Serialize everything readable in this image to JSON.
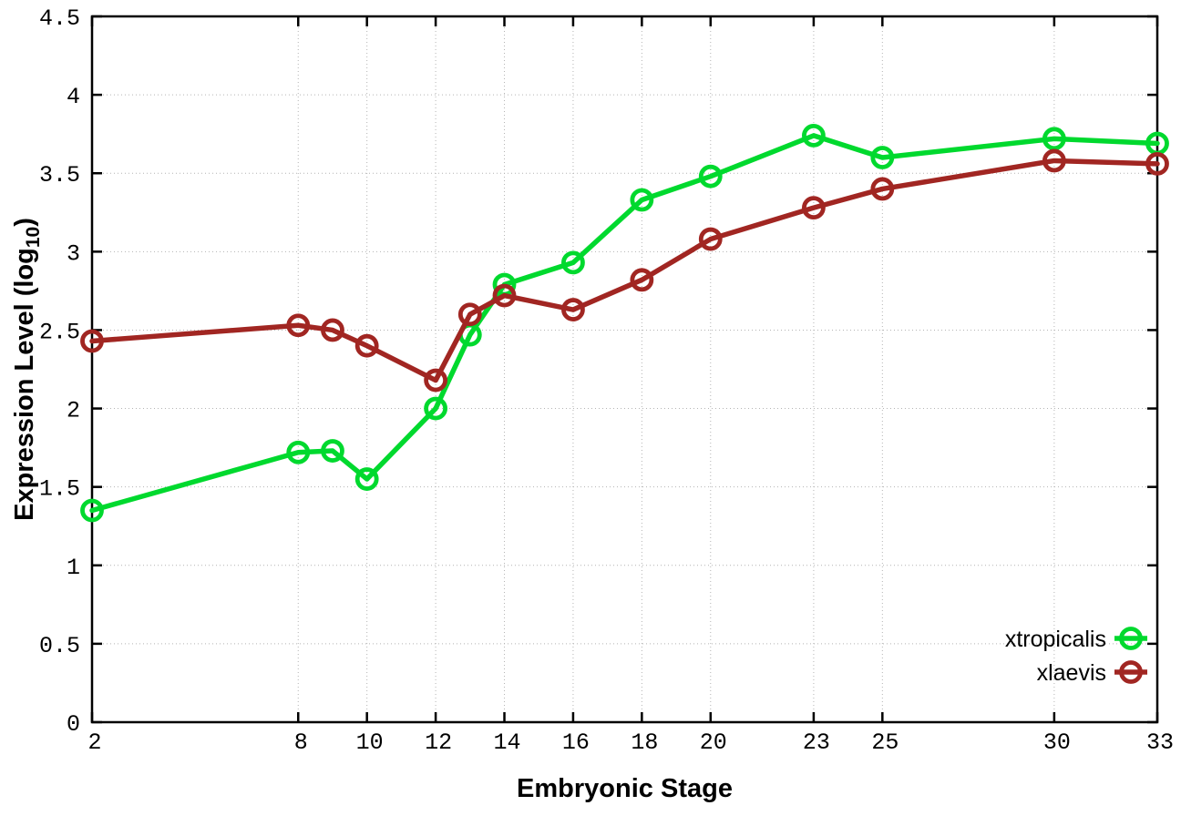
{
  "chart_data": {
    "type": "line",
    "title": "",
    "xlabel": "Embryonic Stage",
    "ylabel": {
      "main": "Expression Level (log",
      "sub": "10",
      "end": ")"
    },
    "xlim": [
      2,
      33
    ],
    "ylim": [
      0,
      4.5
    ],
    "grid": true,
    "legend_position": "inside-bottom-right",
    "x_ticks": [
      2,
      8,
      10,
      12,
      14,
      16,
      18,
      20,
      23,
      25,
      30,
      33
    ],
    "x_tick_labels": [
      "2",
      "8",
      "10",
      "12",
      "14",
      "16",
      "18",
      "20",
      "23",
      "25",
      "30",
      "33"
    ],
    "y_ticks": [
      0,
      0.5,
      1,
      1.5,
      2,
      2.5,
      3,
      3.5,
      4,
      4.5
    ],
    "y_tick_labels": [
      "0",
      "0.5",
      "1",
      "1.5",
      "2",
      "2.5",
      "3",
      "3.5",
      "4",
      "4.5"
    ],
    "series": [
      {
        "name": "xtropicalis",
        "color": "#00d92e",
        "marker": "open-circle",
        "x": [
          2,
          8,
          9,
          10,
          12,
          13,
          14,
          16,
          18,
          20,
          23,
          25,
          30,
          33
        ],
        "y": [
          1.35,
          1.72,
          1.73,
          1.55,
          2.0,
          2.47,
          2.79,
          2.93,
          3.33,
          3.48,
          3.74,
          3.6,
          3.72,
          3.69
        ]
      },
      {
        "name": "xlaevis",
        "color": "#a12622",
        "marker": "open-circle",
        "x": [
          2,
          8,
          9,
          10,
          12,
          13,
          14,
          16,
          18,
          20,
          23,
          25,
          30,
          33
        ],
        "y": [
          2.43,
          2.53,
          2.5,
          2.4,
          2.18,
          2.6,
          2.72,
          2.63,
          2.82,
          3.08,
          3.28,
          3.4,
          3.58,
          3.56
        ]
      }
    ],
    "colors": {
      "axis": "#000000",
      "grid": "#b4b4b4",
      "background": "#ffffff"
    }
  }
}
